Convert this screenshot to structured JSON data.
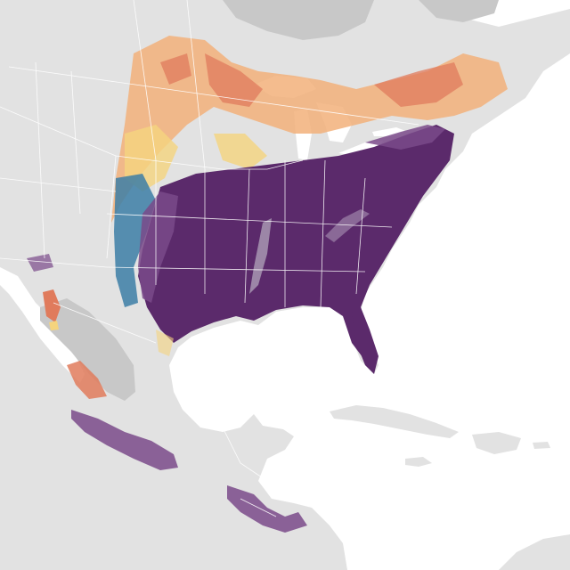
{
  "map": {
    "type": "species-abundance-map",
    "colors": {
      "ocean": "#ffffff",
      "land": "#e2e2e2",
      "land_alt": "#d6d6d6",
      "borders": "#ffffff",
      "lakes": "#ffffff",
      "mexico_plateau": "#c8c8c8",
      "hudson_bay_area": "#c8c8c8"
    },
    "abundance_palette": {
      "high": "#5b2a6b",
      "mid_high": "#7a4a8a",
      "mid": "#3c7ea6",
      "low_mid": "#e07b5c",
      "low": "#f2b07a",
      "lowest": "#f5d47e"
    },
    "labels": []
  }
}
